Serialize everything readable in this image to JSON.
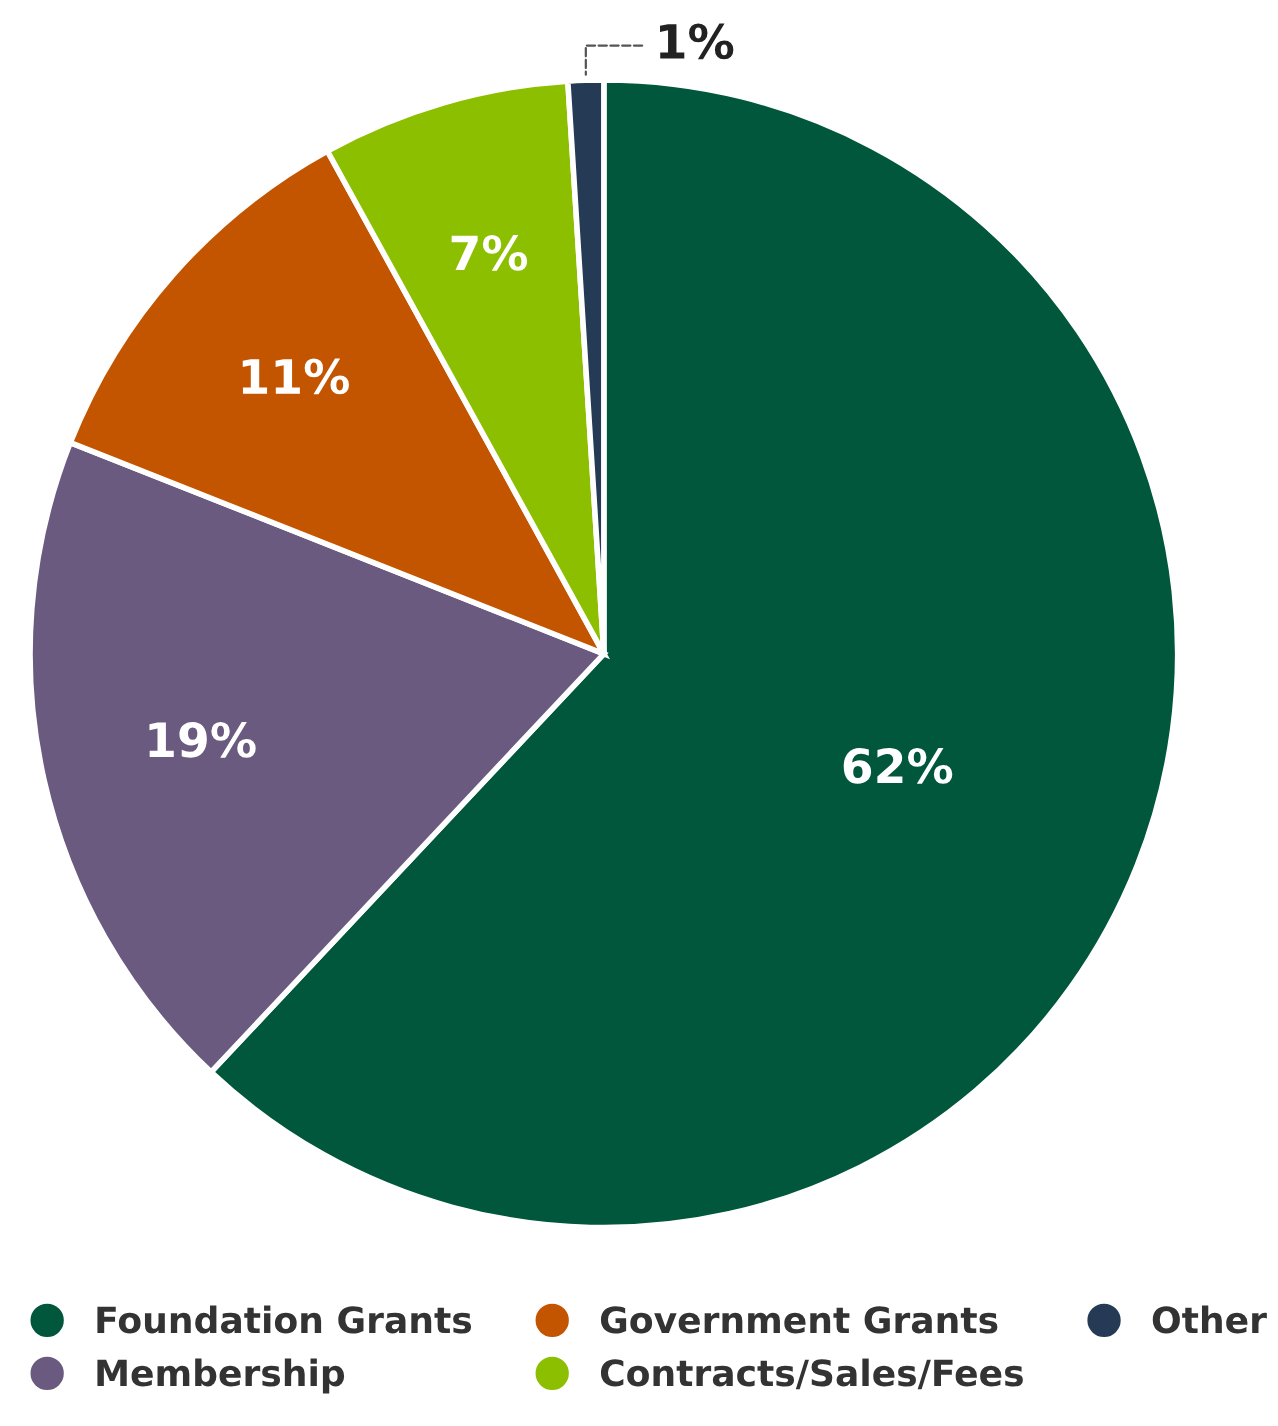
{
  "chart_data": {
    "type": "pie",
    "categories": [
      "Foundation Grants",
      "Membership",
      "Government Grants",
      "Contracts/Sales/Fees",
      "Other"
    ],
    "values": [
      62,
      19,
      11,
      7,
      1
    ],
    "value_labels": [
      "62%",
      "19%",
      "11%",
      "7%",
      "1%"
    ],
    "colors": [
      "#00573b",
      "#6b5a80",
      "#c45500",
      "#8cbf00",
      "#243a55"
    ],
    "legend": "bottom"
  }
}
